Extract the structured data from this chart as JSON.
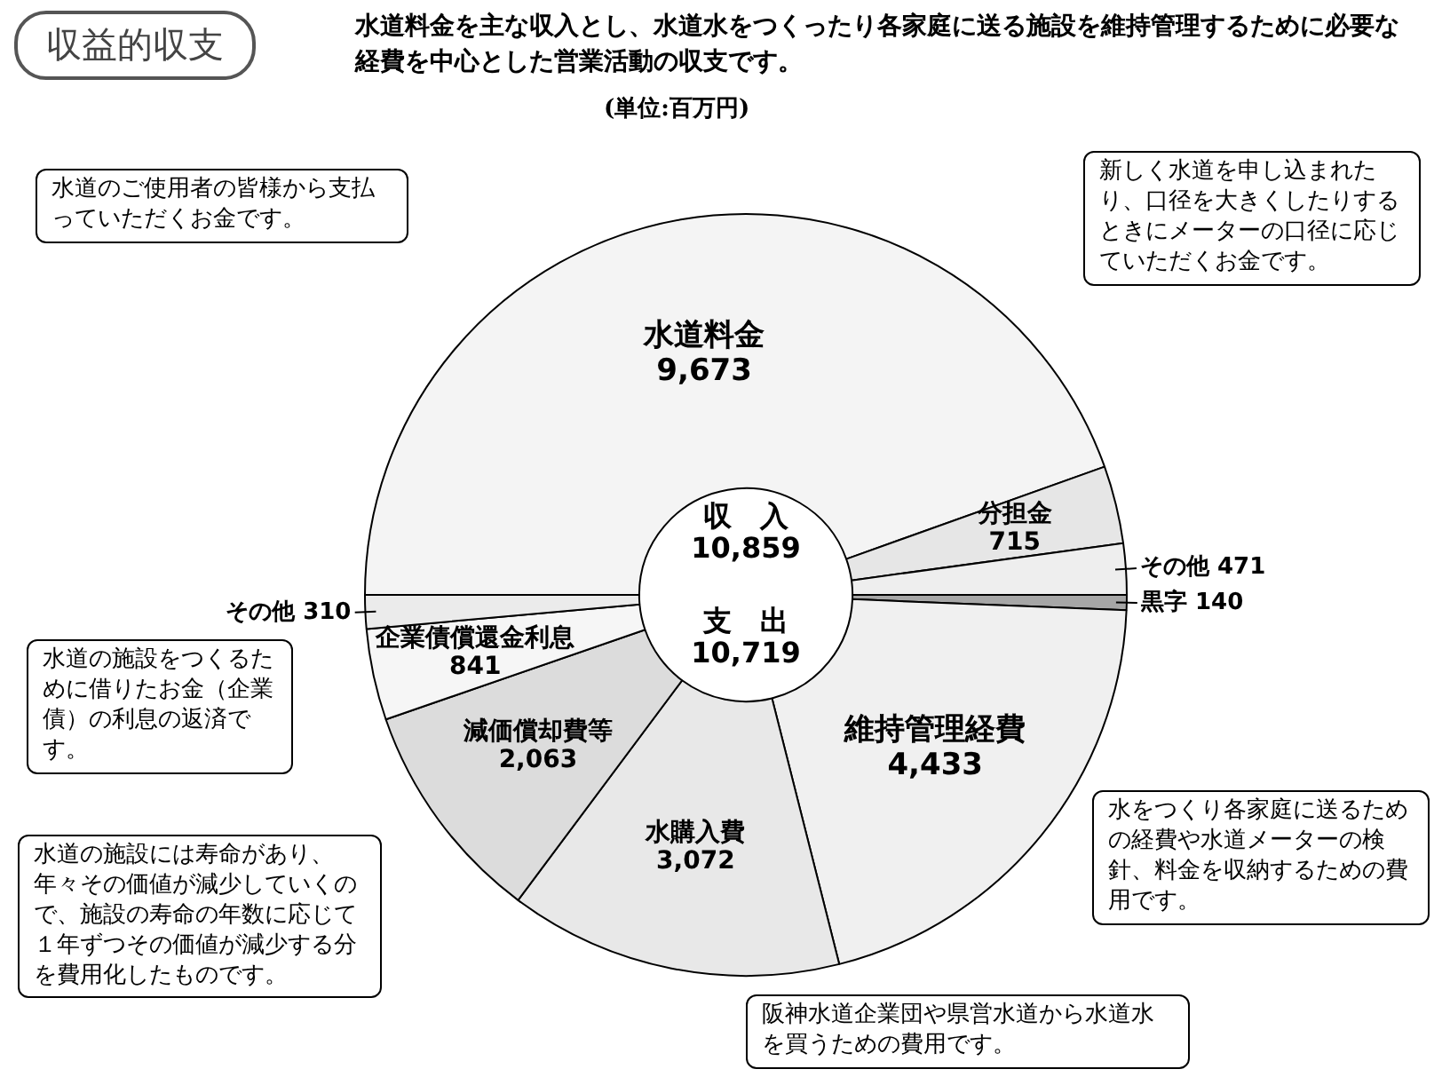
{
  "chart_data": {
    "type": "donut",
    "title": "収益的収支",
    "subtitle": "水道料金を主な収入とし、水道水をつくったり各家庭に送る施設を維持管理するために必要な経費を中心とした営業活動の収支です。",
    "categories": [
      "水道料金",
      "分担金",
      "その他",
      "黒字",
      "維持管理経費",
      "水購入費",
      "減価償却費等",
      "企業債償還金利息",
      "その他"
    ],
    "values": [
      9673,
      715,
      471,
      140,
      4433,
      3072,
      2063,
      841,
      310
    ],
    "colors": [
      "#f4f4f4",
      "#e6e6e6",
      "#eeeeee",
      "#a6a6a6",
      "#f0f0f0",
      "#e8e8e8",
      "#dcdcdc",
      "#f6f6f6",
      "#ebebeb"
    ],
    "value_labels": [
      "9,673",
      "715",
      "471",
      "140",
      "4,433",
      "3,072",
      "2,063",
      "841",
      "310"
    ],
    "legend": false,
    "annotations": [
      "(単位:百万円)",
      "収　入",
      "10,859",
      "支　出",
      "10,719",
      "水道のご使用者の皆様から支払っていただくお金です。",
      "新しく水道を申し込まれたり、口径を大きくしたりするときにメーターの口径に応じていただくお金です。",
      "水道の施設をつくるために借りたお金（企業債）の利息の返済です。",
      "水道の施設には寿命があり、年々その価値が減少していくので、施設の寿命の年数に応じて１年ずつその価値が減少する分を費用化したものです。",
      "水をつくり各家庭に送るための経費や水道メーターの検針、料金を収納するための費用です。",
      "阪神水道企業団や県営水道から水道水を買うための費用です。"
    ]
  }
}
